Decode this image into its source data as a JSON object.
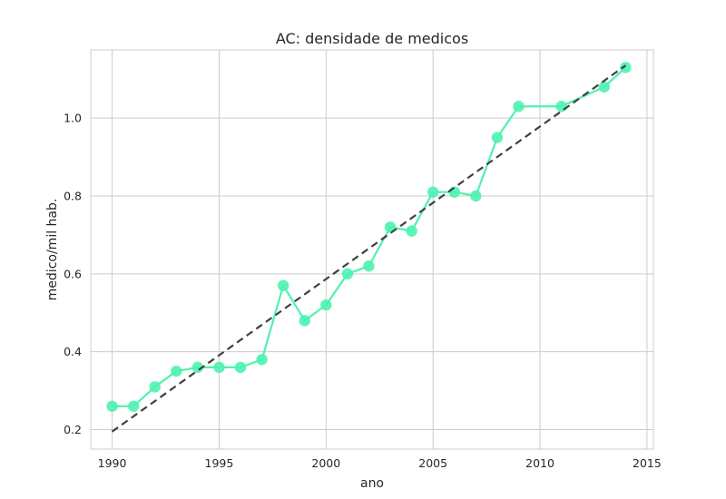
{
  "chart_data": {
    "type": "line",
    "title": "AC: densidade de medicos",
    "xlabel": "ano",
    "ylabel": "medico/mil hab.",
    "xlim": [
      1989,
      2015.3
    ],
    "ylim": [
      0.15,
      1.175
    ],
    "grid": true,
    "x_ticks": [
      1990,
      1995,
      2000,
      2005,
      2010,
      2015
    ],
    "y_ticks": [
      0.2,
      0.4,
      0.6,
      0.8,
      1.0
    ],
    "series": [
      {
        "style": "line-marker",
        "color": "#4ef2b0",
        "x": [
          1990,
          1991,
          1992,
          1993,
          1994,
          1995,
          1996,
          1997,
          1998,
          1999,
          2000,
          2001,
          2002,
          2003,
          2004,
          2005,
          2006,
          2007,
          2008,
          2009,
          2011,
          2013,
          2014
        ],
        "y": [
          0.26,
          0.26,
          0.31,
          0.35,
          0.36,
          0.36,
          0.36,
          0.38,
          0.57,
          0.48,
          0.52,
          0.6,
          0.62,
          0.72,
          0.71,
          0.81,
          0.81,
          0.8,
          0.95,
          1.03,
          1.03,
          1.08,
          1.13
        ]
      },
      {
        "style": "dashed-trend",
        "color": "#404040",
        "x": [
          1990,
          2014
        ],
        "y": [
          0.195,
          1.135
        ]
      }
    ]
  }
}
